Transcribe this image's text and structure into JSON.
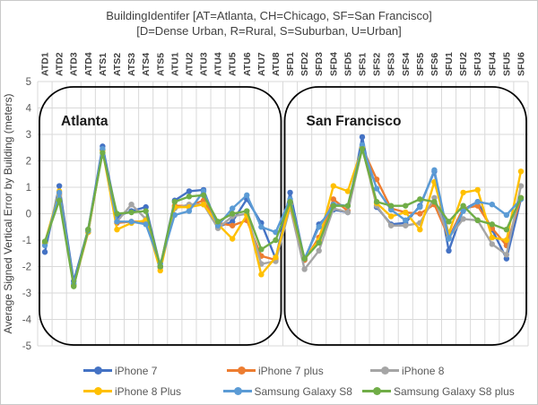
{
  "title": {
    "line1": "BuildingIdentifer [AT=Atlanta, CH=Chicago, SF=San Francisco]",
    "line2": "[D=Dense Urban, R=Rural, S=Suburban, U=Urban]"
  },
  "chart_data": {
    "type": "line",
    "title": "BuildingIdentifer [AT=Atlanta, CH=Chicago, SF=San Francisco] [D=Dense Urban, R=Rural, S=Suburban, U=Urban]",
    "xlabel": "",
    "ylabel": "Average Signed Vertical Error by Building (meters)",
    "ylim": [
      -5,
      5
    ],
    "ytick_step": 1,
    "ytick_labels": [
      "5",
      "4",
      "3",
      "2",
      "1",
      "0",
      "-1",
      "-2",
      "-3",
      "-4",
      "-5"
    ],
    "grid": true,
    "legend_position": "bottom",
    "categories": [
      "ATD1",
      "ATD2",
      "ATD3",
      "ATD4",
      "ATS1",
      "ATS2",
      "ATS3",
      "ATS4",
      "ATS5",
      "ATU1",
      "ATU2",
      "ATU3",
      "ATU4",
      "ATU5",
      "ATU6",
      "ATU7",
      "ATU8",
      "SFD1",
      "SFD2",
      "SFD3",
      "SFD4",
      "SFD5",
      "SFS1",
      "SFS2",
      "SFS3",
      "SFS4",
      "SFS5",
      "SFS6",
      "SFU1",
      "SFU2",
      "SFU3",
      "SFU4",
      "SFU5",
      "SFU6"
    ],
    "regions": [
      {
        "label": "Atlanta",
        "from_category": "ATD1",
        "to_category": "ATU8"
      },
      {
        "label": "San Francisco",
        "from_category": "SFD1",
        "to_category": "SFU6"
      }
    ],
    "series": [
      {
        "name": "iPhone 7",
        "color": "#4472C4",
        "values": [
          -1.45,
          1.05,
          -2.55,
          -0.6,
          2.55,
          -0.1,
          0.1,
          0.25,
          -2.0,
          0.5,
          0.85,
          0.9,
          -0.5,
          -0.3,
          0.55,
          -0.35,
          -1.7,
          0.8,
          -1.75,
          -0.4,
          0.15,
          0.05,
          2.9,
          0.25,
          -0.4,
          -0.35,
          0.3,
          1.6,
          -1.4,
          0.15,
          0.45,
          -0.6,
          -1.7,
          0.55
        ]
      },
      {
        "name": "iPhone 7 plus",
        "color": "#ED7D31",
        "values": [
          -1.1,
          0.75,
          -2.7,
          -0.7,
          2.4,
          -0.35,
          -0.3,
          -0.3,
          -2.0,
          0.3,
          0.3,
          0.5,
          -0.35,
          -0.45,
          -0.25,
          -1.6,
          -1.75,
          0.45,
          -1.75,
          -0.9,
          0.55,
          0.1,
          2.5,
          1.3,
          0.2,
          0.05,
          0.0,
          0.35,
          -0.9,
          0.2,
          0.3,
          -0.55,
          -1.2,
          0.6
        ]
      },
      {
        "name": "iPhone 8",
        "color": "#A5A5A5",
        "values": [
          -1.1,
          0.7,
          -2.7,
          -0.65,
          2.4,
          -0.3,
          0.35,
          -0.2,
          -2.05,
          0.2,
          0.35,
          0.35,
          -0.55,
          -0.1,
          0.0,
          -1.9,
          -1.8,
          0.25,
          -2.1,
          -1.4,
          0.2,
          0.05,
          2.5,
          0.3,
          -0.45,
          -0.45,
          -0.35,
          0.6,
          -0.9,
          -0.2,
          -0.25,
          -1.15,
          -1.55,
          1.05
        ]
      },
      {
        "name": "iPhone 8 Plus",
        "color": "#FFC000",
        "values": [
          -1.1,
          0.85,
          -2.7,
          -0.7,
          2.4,
          -0.6,
          -0.35,
          -0.25,
          -2.15,
          0.25,
          0.25,
          0.35,
          -0.4,
          -0.95,
          -0.05,
          -2.3,
          -1.65,
          0.35,
          -1.7,
          -1.0,
          1.05,
          0.85,
          2.5,
          0.4,
          -0.1,
          0.05,
          -0.6,
          1.2,
          -0.75,
          0.8,
          0.9,
          -0.9,
          -1.0,
          1.6
        ]
      },
      {
        "name": "Samsung Galaxy S8",
        "color": "#5B9BD5",
        "values": [
          -1.2,
          0.8,
          -2.65,
          -0.65,
          2.45,
          -0.3,
          -0.3,
          -0.4,
          -1.9,
          -0.05,
          0.1,
          0.85,
          -0.45,
          0.2,
          0.7,
          -0.5,
          -0.7,
          0.55,
          -1.7,
          -0.5,
          0.35,
          0.3,
          2.6,
          0.95,
          0.15,
          -0.25,
          0.25,
          1.65,
          -0.95,
          0.1,
          0.45,
          0.35,
          -0.05,
          0.55
        ]
      },
      {
        "name": "Samsung Galaxy S8 plus",
        "color": "#70AD47",
        "values": [
          -1.05,
          0.5,
          -2.75,
          -0.6,
          2.3,
          0.0,
          0.05,
          0.1,
          -2.0,
          0.45,
          0.65,
          0.7,
          -0.3,
          0.0,
          0.1,
          -1.35,
          -1.0,
          0.45,
          -1.7,
          -1.1,
          0.3,
          0.3,
          2.45,
          0.45,
          0.3,
          0.3,
          0.55,
          0.45,
          -0.3,
          0.3,
          -0.25,
          -0.4,
          -0.6,
          0.6
        ]
      }
    ]
  },
  "colors": {
    "grid": "#D9D9D9",
    "axis_text": "#595959",
    "category_text": "#404040",
    "region_border": "#000000",
    "region_text": "#1a1a1a",
    "title_text": "#404040",
    "legend_text": "#595959"
  }
}
